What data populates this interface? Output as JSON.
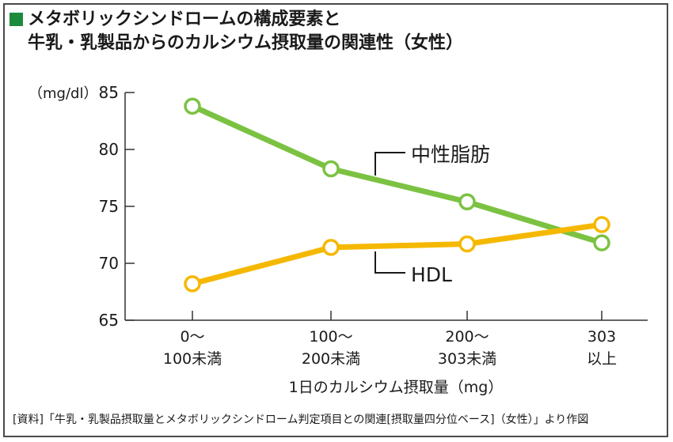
{
  "title_line1": "メタボリックシンドロームの構成要素と",
  "title_line2": "牛乳・乳製品からのカルシウム摂取量の関連性（女性）",
  "source": "[資料]「牛乳・乳製品摂取量とメタボリックシンドローム判定項目との関連[摂取量四分位ベース]（女性）」より作図",
  "colors": {
    "title_square": "#1e8a3c",
    "green_series": "#7cc242",
    "yellow_series": "#f5b800",
    "axis": "#333333"
  },
  "chart_data": {
    "type": "line",
    "categories": [
      [
        "0〜",
        "100未満"
      ],
      [
        "100〜",
        "200未満"
      ],
      [
        "200〜",
        "303未満"
      ],
      [
        "303",
        "以上"
      ]
    ],
    "xlabel": "1日のカルシウム摂取量（mg）",
    "ylabel": "（mg/dl）",
    "ylim": [
      65,
      85
    ],
    "yticks": [
      65,
      70,
      75,
      80,
      85
    ],
    "grid": false,
    "series": [
      {
        "name": "中性脂肪",
        "values": [
          83.8,
          78.3,
          75.4,
          71.8
        ],
        "color": "#7cc242"
      },
      {
        "name": "HDL",
        "values": [
          68.2,
          71.4,
          71.7,
          73.4
        ],
        "color": "#f5b800"
      }
    ]
  }
}
